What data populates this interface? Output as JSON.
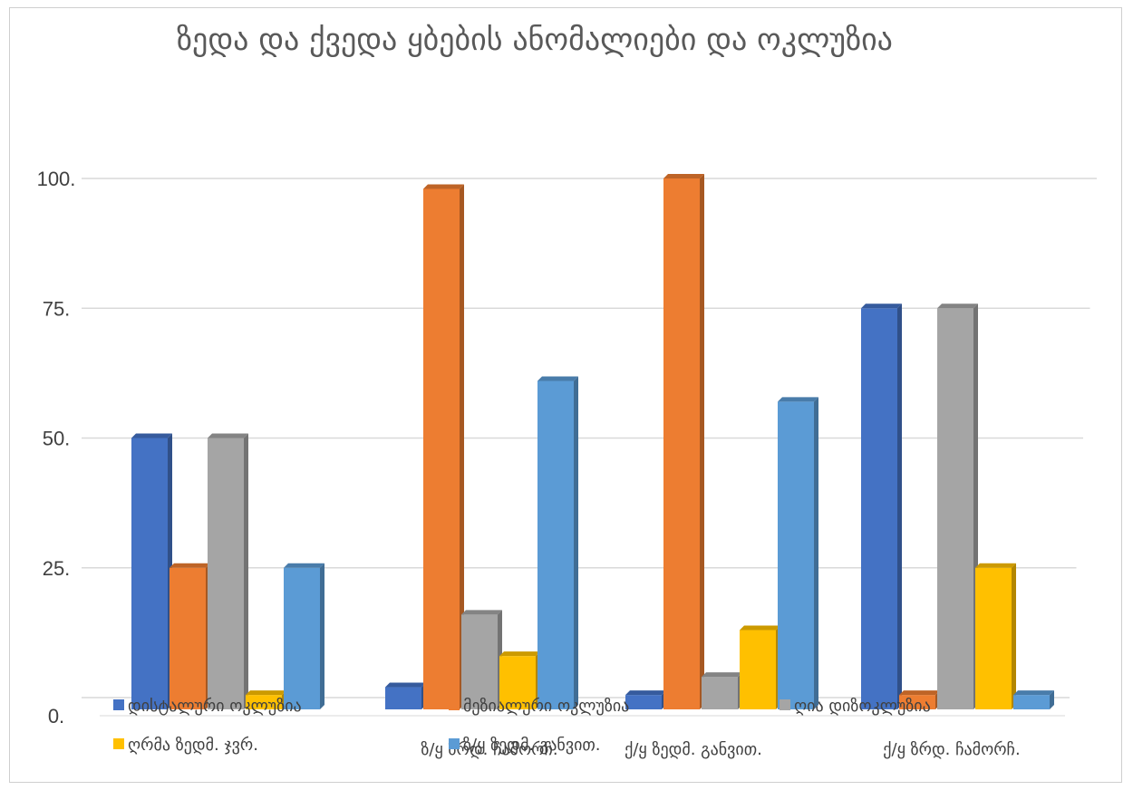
{
  "chart_data": {
    "type": "bar",
    "title": "ზედა და ქვედა ყბების ანომალიები და ოკლუზია",
    "xlabel": "",
    "ylabel": "",
    "ylim": [
      0,
      100
    ],
    "y_ticks": [
      "0.",
      "25.",
      "50.",
      "75.",
      "100."
    ],
    "grid": true,
    "legend_position": "bottom",
    "categories": [
      "",
      "ზ/ყ ზრდ. ჩამორჩ.",
      "ქ/ყ ზედმ. განვით.",
      "ქ/ყ ზრდ. ჩამორჩ."
    ],
    "series": [
      {
        "name": "დისტალური ოკლუზია",
        "color": "#4472c4",
        "values": [
          50,
          2,
          0.5,
          75
        ]
      },
      {
        "name": "მეზიალური ოკლუზია",
        "color": "#ed7d31",
        "values": [
          25,
          98,
          100,
          0.5
        ]
      },
      {
        "name": "ღია დიზოკლუზია",
        "color": "#a5a5a5",
        "values": [
          50,
          16,
          4,
          75
        ]
      },
      {
        "name": "ღრმა ზედმ. ჯვრ.",
        "color": "#ffc000",
        "values": [
          0.5,
          8,
          13,
          25
        ]
      },
      {
        "name": "ზ/ყ ზედმ. განვით.",
        "color": "#5b9bd5",
        "values": [
          25,
          61,
          57,
          0.5
        ]
      }
    ]
  }
}
